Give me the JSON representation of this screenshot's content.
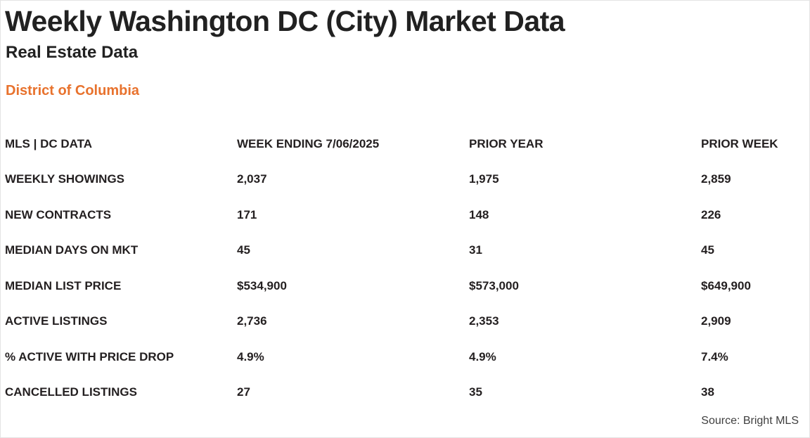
{
  "header": {
    "title": "Weekly Washington DC (City) Market Data",
    "subtitle": "Real Estate Data",
    "region": "District of Columbia"
  },
  "colors": {
    "accent_orange": "#e8722d",
    "text_dark": "#231f20",
    "source_gray": "#3f3f3f"
  },
  "chart_data": {
    "type": "table",
    "title": "Weekly Washington DC (City) Market Data",
    "columns": [
      "MLS | DC DATA",
      "WEEK ENDING 7/06/2025",
      "PRIOR YEAR",
      "PRIOR WEEK"
    ],
    "rows": [
      [
        "WEEKLY SHOWINGS",
        "2,037",
        "1,975",
        "2,859"
      ],
      [
        "NEW CONTRACTS",
        "171",
        "148",
        "226"
      ],
      [
        "MEDIAN DAYS ON MKT",
        "45",
        "31",
        "45"
      ],
      [
        "MEDIAN LIST PRICE",
        "$534,900",
        "$573,000",
        "$649,900"
      ],
      [
        "ACTIVE LISTINGS",
        "2,736",
        "2,353",
        "2,909"
      ],
      [
        "% ACTIVE WITH PRICE DROP",
        "4.9%",
        "4.9%",
        "7.4%"
      ],
      [
        "CANCELLED LISTINGS",
        "27",
        "35",
        "38"
      ]
    ],
    "source": "Source: Bright MLS"
  }
}
